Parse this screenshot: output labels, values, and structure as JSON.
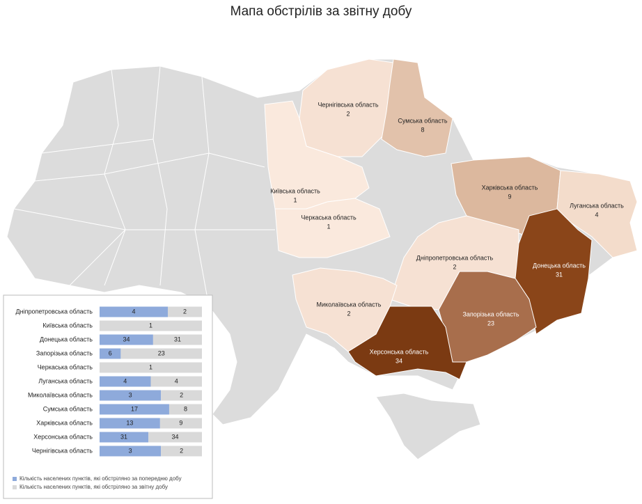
{
  "chart_data": [
    {
      "type": "choropleth",
      "title": "Мапа обстрілів за звітну добу",
      "regions": [
        {
          "name": "Чернігівська область",
          "value": 2,
          "color": "#f6e1d3"
        },
        {
          "name": "Сумська область",
          "value": 8,
          "color": "#e2c2ab"
        },
        {
          "name": "Київська область",
          "value": 1,
          "color": "#fae9dd"
        },
        {
          "name": "Черкаська область",
          "value": 1,
          "color": "#fae9dd"
        },
        {
          "name": "Харківська область",
          "value": 9,
          "color": "#dcb89e"
        },
        {
          "name": "Луганська область",
          "value": 4,
          "color": "#f3dccb"
        },
        {
          "name": "Дніпропетровська область",
          "value": 2,
          "color": "#f6e1d3"
        },
        {
          "name": "Донецька область",
          "value": 31,
          "color": "#8a4519"
        },
        {
          "name": "Миколаївська область",
          "value": 2,
          "color": "#f6e1d3"
        },
        {
          "name": "Запорізька область",
          "value": 23,
          "color": "#a86e4c"
        },
        {
          "name": "Херсонська область",
          "value": 34,
          "color": "#7b3a12"
        }
      ]
    },
    {
      "type": "bar",
      "orientation": "horizontal",
      "stacking": "percent",
      "categories": [
        "Дніпропетровська область",
        "Київська область",
        "Донецька область",
        "Запорізька область",
        "Черкаська  область",
        "Луганська область",
        "Миколаївська область",
        "Сумська область",
        "Харківська область",
        "Херсонська область",
        "Чернігівська  область"
      ],
      "series": [
        {
          "name": "Кількість населених пунктів, які обстріляно за попередню добу",
          "color": "#8eaadb",
          "values": [
            4,
            null,
            34,
            6,
            null,
            4,
            3,
            17,
            13,
            31,
            3
          ]
        },
        {
          "name": "Кількість населених пунктів, які обстріляно за звітну добу",
          "color": "#d9d9d9",
          "values": [
            2,
            1,
            31,
            23,
            1,
            4,
            2,
            8,
            9,
            34,
            2
          ]
        }
      ]
    }
  ]
}
